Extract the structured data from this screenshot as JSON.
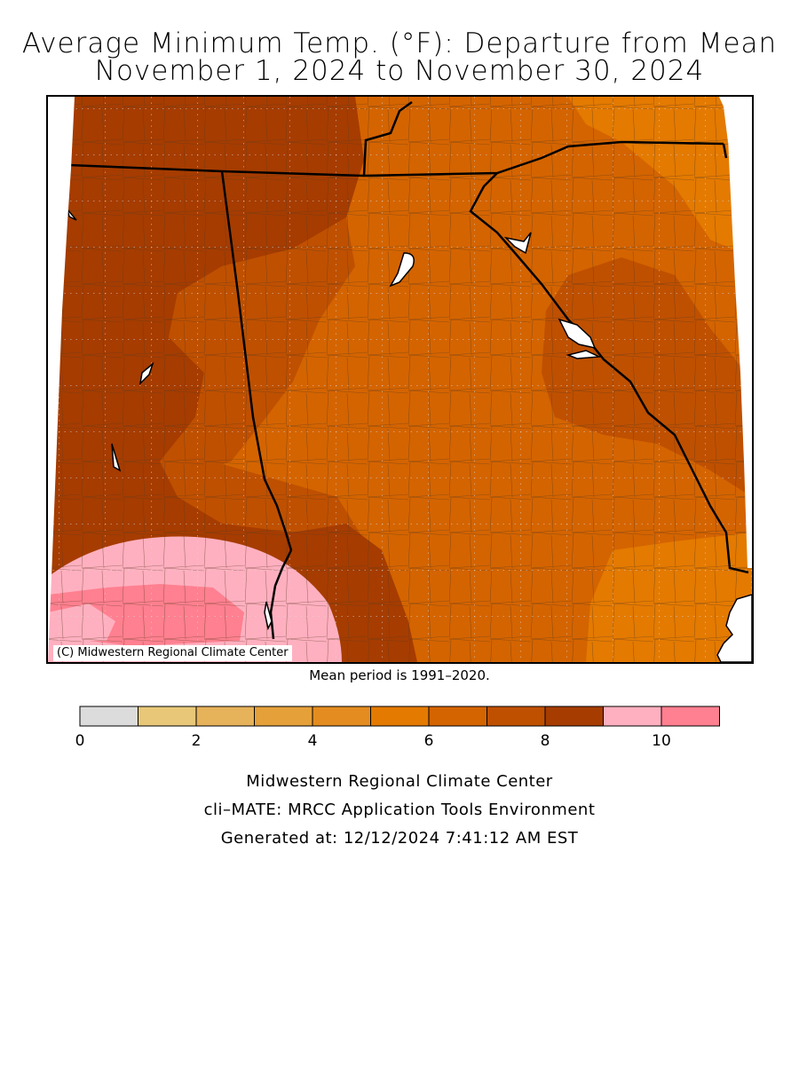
{
  "title_line1": "Average Minimum Temp. (°F): Departure from Mean",
  "title_line2": "November 1, 2024 to November 30, 2024",
  "copyright": "(C) Midwestern Regional Climate Center",
  "mean_period": "Mean period is 1991–2020.",
  "legend": {
    "bins": [
      {
        "from": 0,
        "to": 1,
        "color": "#dcdcdc"
      },
      {
        "from": 1,
        "to": 2,
        "color": "#e8c878"
      },
      {
        "from": 2,
        "to": 3,
        "color": "#e6b25a"
      },
      {
        "from": 3,
        "to": 4,
        "color": "#e5a03a"
      },
      {
        "from": 4,
        "to": 5,
        "color": "#e48c20"
      },
      {
        "from": 5,
        "to": 6,
        "color": "#e47a00"
      },
      {
        "from": 6,
        "to": 7,
        "color": "#d46400"
      },
      {
        "from": 7,
        "to": 8,
        "color": "#bf5000"
      },
      {
        "from": 8,
        "to": 9,
        "color": "#a63c00"
      },
      {
        "from": 9,
        "to": 10,
        "color": "#ffb0c0"
      },
      {
        "from": 10,
        "to": 11,
        "color": "#ff8090"
      }
    ],
    "tick_labels": [
      "0",
      "2",
      "4",
      "6",
      "8",
      "10"
    ],
    "tick_values": [
      0,
      2,
      4,
      6,
      8,
      10
    ]
  },
  "footer": {
    "org": "Midwestern Regional Climate Center",
    "tool": "cli–MATE: MRCC Application Tools Environment",
    "generated": "Generated at: 12/12/2024 7:41:12 AM EST"
  }
}
